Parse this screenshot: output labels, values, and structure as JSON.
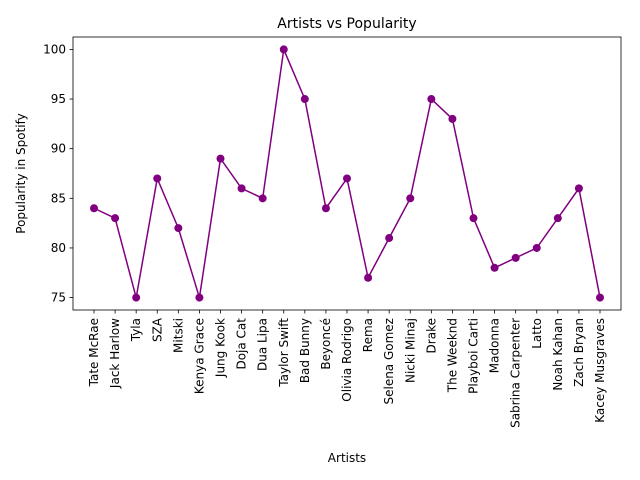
{
  "chart_data": {
    "type": "line",
    "title": "Artists vs Popularity",
    "xlabel": "Artists",
    "ylabel": "Popularity in Spotify",
    "categories": [
      "Tate McRae",
      "Jack Harlow",
      "Tyla",
      "SZA",
      "Mitski",
      "Kenya Grace",
      "Jung Kook",
      "Doja Cat",
      "Dua Lipa",
      "Taylor Swift",
      "Bad Bunny",
      "Beyoncé",
      "Olivia Rodrigo",
      "Rema",
      "Selena Gomez",
      "Nicki Minaj",
      "Drake",
      "The Weeknd",
      "Playboi Carti",
      "Madonna",
      "Sabrina Carpenter",
      "Latto",
      "Noah Kahan",
      "Zach Bryan",
      "Kacey Musgraves"
    ],
    "values": [
      84,
      83,
      75,
      87,
      82,
      75,
      89,
      86,
      85,
      100,
      95,
      84,
      87,
      77,
      81,
      85,
      95,
      93,
      83,
      78,
      79,
      80,
      83,
      86,
      75
    ],
    "yticks": [
      75,
      80,
      85,
      90,
      95,
      100
    ],
    "ylim": [
      73.75,
      101.25
    ],
    "grid": false,
    "color": "#800080"
  }
}
